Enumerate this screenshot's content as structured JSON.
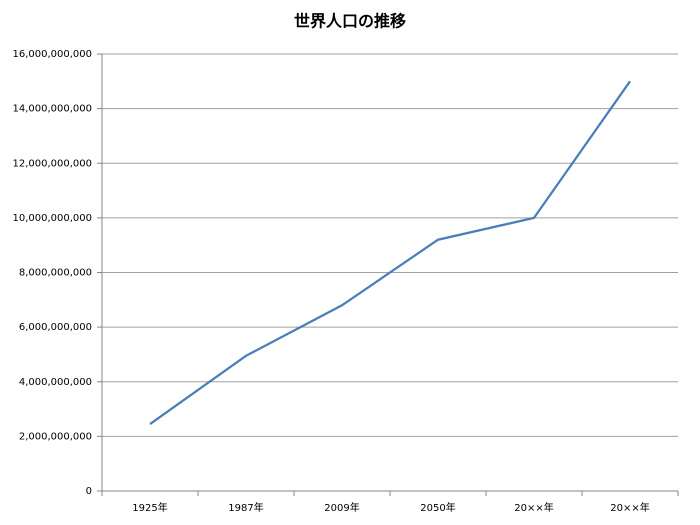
{
  "chart_data": {
    "type": "line",
    "title": "世界人口の推移",
    "categories": [
      "1925年",
      "1987年",
      "2009年",
      "2050年",
      "20××年",
      "20××年"
    ],
    "series": [
      {
        "name": "世界人口",
        "color": "#4a7ebb",
        "values": [
          2450000000,
          4950000000,
          6800000000,
          9200000000,
          10000000000,
          15000000000
        ]
      }
    ],
    "ylim": [
      0,
      16000000000
    ],
    "yticks": [
      0,
      {
        "value": 2000000000,
        "label": "2,000,000,000"
      },
      {
        "value": 4000000000,
        "label": "4,000,000,000"
      },
      {
        "value": 6000000000,
        "label": "6,000,000,000"
      },
      {
        "value": 8000000000,
        "label": "8,000,000,000"
      },
      {
        "value": 10000000000,
        "label": "10,000,000,000"
      },
      {
        "value": 12000000000,
        "label": "12,000,000,000"
      },
      {
        "value": 14000000000,
        "label": "14,000,000,000"
      },
      {
        "value": 16000000000,
        "label": "16,000,000,000"
      }
    ],
    "grid": true
  }
}
